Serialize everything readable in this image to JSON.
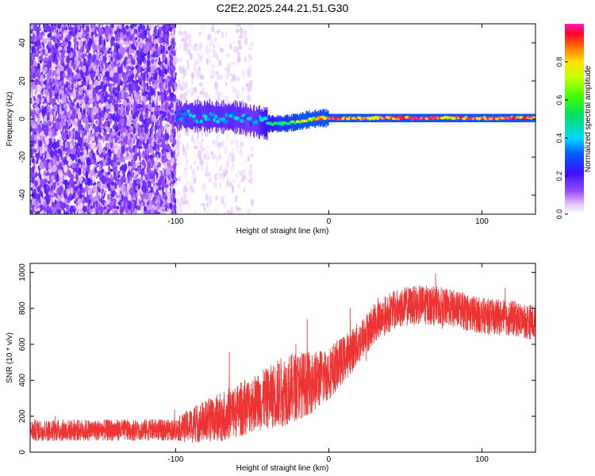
{
  "title": "C2E2.2025.244.21.51.G30",
  "colors": {
    "snr_line": "#ee3333",
    "ridge": "#e8102a",
    "axis": "#000000"
  },
  "chart_data": [
    {
      "type": "heatmap",
      "name": "spectrogram",
      "xlabel": "Height of straight line (km)",
      "ylabel": "Frequency (Hz)",
      "xlim": [
        -195,
        135
      ],
      "ylim": [
        -50,
        50
      ],
      "xticks": [
        -100,
        0,
        100
      ],
      "yticks": [
        -40,
        -20,
        0,
        20,
        40
      ],
      "ridge": {
        "x": [
          -100,
          -90,
          -80,
          -70,
          -60,
          -50,
          -40,
          -35,
          -30,
          -25,
          -20,
          -15,
          -10,
          -5,
          0,
          10,
          20,
          40,
          60,
          80,
          100,
          120,
          135
        ],
        "y_hz": [
          2,
          1.5,
          1.5,
          1,
          1,
          -1,
          -2.5,
          -2.5,
          -2.5,
          -2,
          -1.5,
          -0.5,
          0,
          0.5,
          0.5,
          0.5,
          0.5,
          0.5,
          0.5,
          0.5,
          0.5,
          0.5,
          0.5
        ],
        "amplitude": [
          0.35,
          0.4,
          0.4,
          0.4,
          0.4,
          0.35,
          0.5,
          0.55,
          0.6,
          0.6,
          0.7,
          0.75,
          0.8,
          0.85,
          0.95,
          0.95,
          0.95,
          0.95,
          0.95,
          0.95,
          0.95,
          0.95,
          0.95
        ]
      },
      "noise_regions": [
        {
          "x_from": -195,
          "x_to": -100,
          "amplitude": 0.12
        },
        {
          "x_from": -100,
          "x_to": -50,
          "amplitude": 0.03
        }
      ],
      "colorbar": {
        "label": "Normalized spectral amplitude",
        "range": [
          0,
          1
        ],
        "ticks": [
          "0.0",
          "0.2",
          "0.4",
          "0.6",
          "0.8"
        ]
      }
    },
    {
      "type": "line",
      "name": "snr",
      "xlabel": "Height of straight line (km)",
      "ylabel": "SNR (10 * v/v)",
      "xlim": [
        -195,
        135
      ],
      "ylim": [
        0,
        1050
      ],
      "xticks": [
        -100,
        0,
        100
      ],
      "yticks": [
        0,
        200,
        400,
        600,
        800,
        1000
      ],
      "envelope": {
        "x": [
          -195,
          -100,
          -90,
          -80,
          -70,
          -60,
          -50,
          -40,
          -30,
          -20,
          -10,
          0,
          10,
          20,
          30,
          40,
          50,
          60,
          70,
          80,
          90,
          100,
          110,
          120,
          135
        ],
        "mean": [
          120,
          125,
          150,
          175,
          200,
          230,
          270,
          300,
          340,
          370,
          390,
          440,
          520,
          610,
          720,
          780,
          810,
          820,
          815,
          800,
          780,
          760,
          750,
          745,
          720
        ],
        "spread": [
          60,
          60,
          100,
          120,
          140,
          150,
          160,
          170,
          200,
          190,
          170,
          150,
          130,
          120,
          110,
          110,
          110,
          110,
          110,
          105,
          105,
          100,
          100,
          100,
          100
        ]
      }
    }
  ]
}
